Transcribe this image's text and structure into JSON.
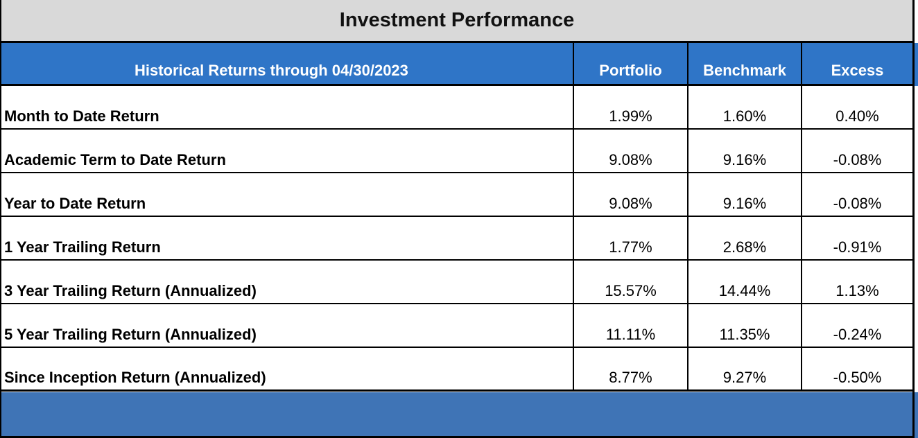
{
  "title": "Investment Performance",
  "header": {
    "period_label": "Historical Returns through 04/30/2023",
    "portfolio": "Portfolio",
    "benchmark": "Benchmark",
    "excess": "Excess"
  },
  "rows": [
    {
      "label": "Month to Date Return",
      "portfolio": "1.99%",
      "benchmark": "1.60%",
      "excess": "0.40%"
    },
    {
      "label": "Academic Term to Date Return",
      "portfolio": "9.08%",
      "benchmark": "9.16%",
      "excess": "-0.08%"
    },
    {
      "label": "Year to Date Return",
      "portfolio": "9.08%",
      "benchmark": "9.16%",
      "excess": "-0.08%"
    },
    {
      "label": "1 Year Trailing Return",
      "portfolio": "1.77%",
      "benchmark": "2.68%",
      "excess": "-0.91%"
    },
    {
      "label": "3 Year Trailing Return (Annualized)",
      "portfolio": "15.57%",
      "benchmark": "14.44%",
      "excess": "1.13%"
    },
    {
      "label": "5 Year Trailing Return (Annualized)",
      "portfolio": "11.11%",
      "benchmark": "11.35%",
      "excess": "-0.24%"
    },
    {
      "label": "Since Inception Return (Annualized)",
      "portfolio": "8.77%",
      "benchmark": "9.27%",
      "excess": "-0.50%"
    }
  ],
  "colors": {
    "title_bg": "#d9d9d9",
    "header_bg": "#2f75c7",
    "footer_bg": "#3f74b6"
  }
}
